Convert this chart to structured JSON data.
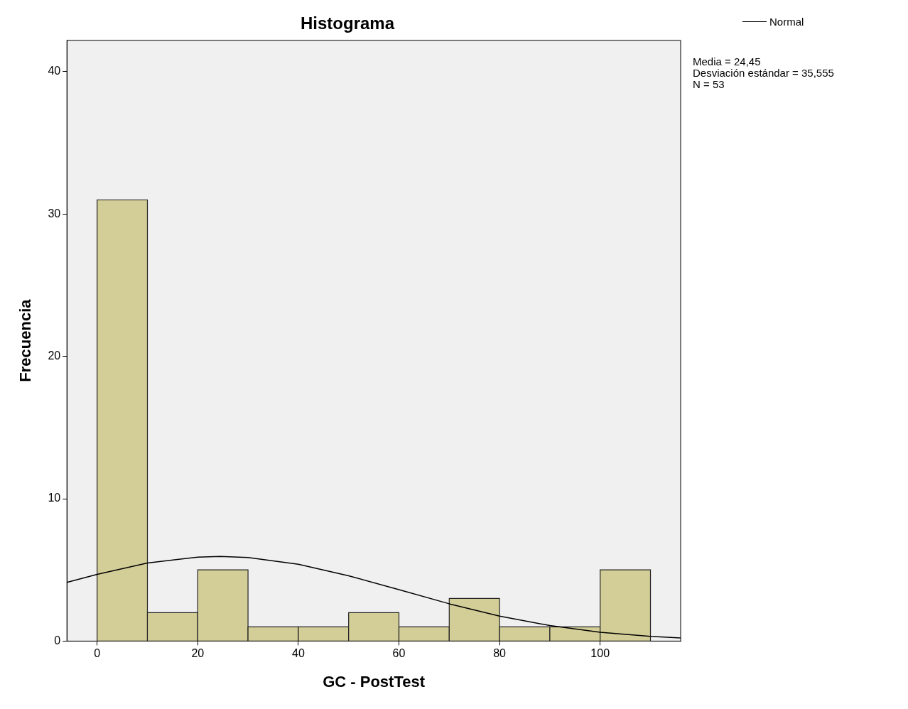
{
  "chart_data": {
    "type": "histogram",
    "title": "Histograma",
    "xlabel": "GC - PostTest",
    "ylabel": "Frecuencia",
    "bins": [
      0,
      10,
      20,
      30,
      40,
      50,
      60,
      70,
      80,
      90,
      100,
      110
    ],
    "values": [
      31,
      2,
      5,
      1,
      1,
      2,
      1,
      3,
      1,
      1,
      5
    ],
    "color": "#d3ce97",
    "series": [
      {
        "name": "Normal",
        "type": "line",
        "color": "#000000",
        "x": [
          -6,
          0,
          10,
          20,
          24.45,
          30,
          40,
          50,
          60,
          70,
          80,
          90,
          100,
          110,
          116
        ],
        "values": [
          4.12,
          4.69,
          5.48,
          5.9,
          5.95,
          5.87,
          5.4,
          4.59,
          3.61,
          2.62,
          1.75,
          1.09,
          0.62,
          0.33,
          0.22
        ]
      }
    ],
    "marker": "none",
    "xlim": [
      -6,
      116
    ],
    "ylim": [
      0,
      42.2
    ],
    "xticks": [
      0,
      20,
      40,
      60,
      80,
      100
    ],
    "yticks": [
      0,
      10,
      20,
      30,
      40
    ],
    "legend": "top right",
    "annotations": [
      "Media = 24,45",
      "Desviación estándar = 35,555",
      "N = 53"
    ]
  }
}
